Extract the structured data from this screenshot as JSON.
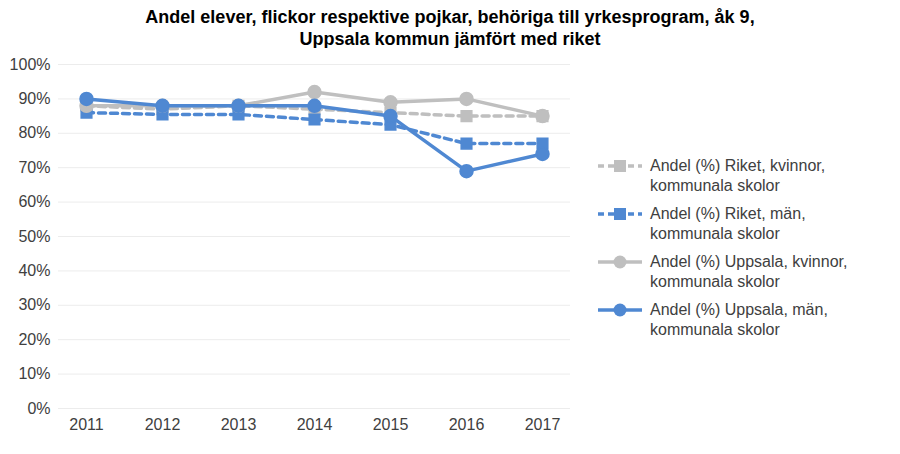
{
  "chart_data": {
    "type": "line",
    "title": "Andel elever, flickor respektive pojkar, behöriga till yrkesprogram, åk 9,\nUppsala kommun jämfört med riket",
    "categories": [
      "2011",
      "2012",
      "2013",
      "2014",
      "2015",
      "2016",
      "2017"
    ],
    "series": [
      {
        "name": "Andel (%) Riket, kvinnor, kommunala skolor",
        "color": "#bfbfbf",
        "marker": "square",
        "line_style": "dashed",
        "values": [
          88,
          87,
          88,
          87,
          86,
          85,
          85
        ]
      },
      {
        "name": "Andel (%) Riket, män, kommunala skolor",
        "color": "#4f88d2",
        "marker": "square",
        "line_style": "dashed",
        "values": [
          86,
          85.5,
          85.5,
          84,
          82.5,
          77,
          77
        ]
      },
      {
        "name": "Andel (%) Uppsala, kvinnor, kommunala skolor",
        "color": "#bfbfbf",
        "marker": "circle",
        "line_style": "solid",
        "values": [
          88,
          88,
          88,
          92,
          89,
          90,
          85
        ]
      },
      {
        "name": "Andel (%) Uppsala, män, kommunala skolor",
        "color": "#4f88d2",
        "marker": "circle",
        "line_style": "solid",
        "values": [
          90,
          88,
          88,
          88,
          85,
          69,
          74
        ]
      }
    ],
    "ylim": [
      0,
      100
    ],
    "yticks": [
      {
        "value": 0,
        "label": "0%"
      },
      {
        "value": 10,
        "label": "10%"
      },
      {
        "value": 20,
        "label": "20%"
      },
      {
        "value": 30,
        "label": "30%"
      },
      {
        "value": 40,
        "label": "40%"
      },
      {
        "value": 50,
        "label": "50%"
      },
      {
        "value": 60,
        "label": "60%"
      },
      {
        "value": 70,
        "label": "70%"
      },
      {
        "value": 80,
        "label": "80%"
      },
      {
        "value": 90,
        "label": "90%"
      },
      {
        "value": 100,
        "label": "100%"
      }
    ],
    "grid": true,
    "legend": "right"
  }
}
